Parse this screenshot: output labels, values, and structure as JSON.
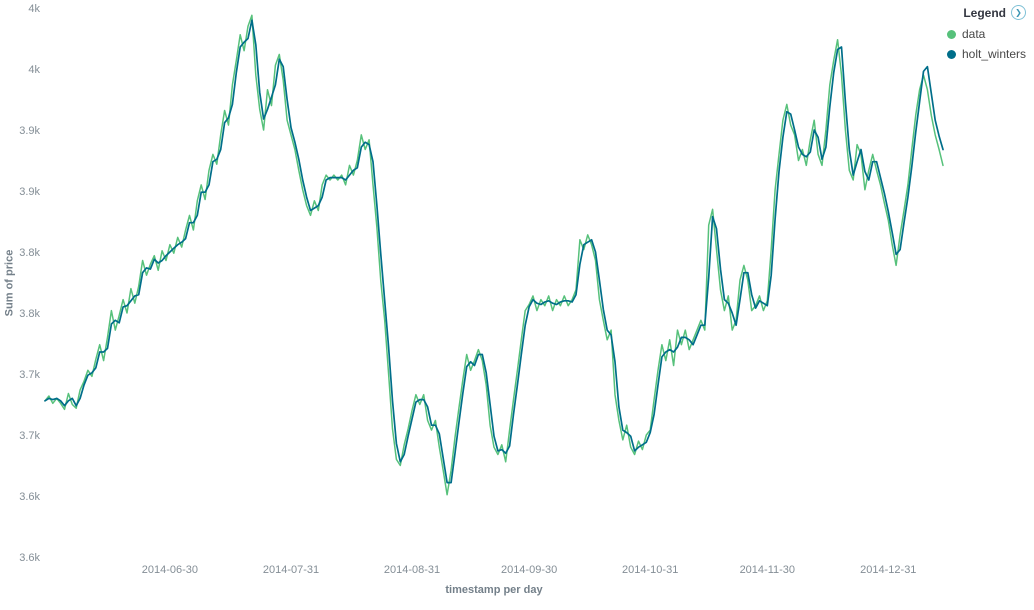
{
  "legend": {
    "title": "Legend",
    "toggle_glyph": "❯",
    "position": "top-right"
  },
  "chart_data": {
    "type": "line",
    "xlabel": "timestamp per day",
    "ylabel": "Sum of price",
    "x_start_date": "2014-05-29",
    "x_interval": "1d",
    "ylim": [
      3550,
      4000
    ],
    "grid": false,
    "legend_position": "top-right",
    "y_ticks": [
      {
        "value": 4000,
        "label": "4k"
      },
      {
        "value": 3950,
        "label": "4k"
      },
      {
        "value": 3900,
        "label": "3.9k"
      },
      {
        "value": 3850,
        "label": "3.9k"
      },
      {
        "value": 3800,
        "label": "3.8k"
      },
      {
        "value": 3750,
        "label": "3.8k"
      },
      {
        "value": 3700,
        "label": "3.7k"
      },
      {
        "value": 3650,
        "label": "3.7k"
      },
      {
        "value": 3600,
        "label": "3.6k"
      },
      {
        "value": 3550,
        "label": "3.6k"
      }
    ],
    "x_ticks": [
      {
        "day_index": 32,
        "label": "2014-06-30"
      },
      {
        "day_index": 63,
        "label": "2014-07-31"
      },
      {
        "day_index": 94,
        "label": "2014-08-31"
      },
      {
        "day_index": 124,
        "label": "2014-09-30"
      },
      {
        "day_index": 155,
        "label": "2014-10-31"
      },
      {
        "day_index": 185,
        "label": "2014-11-30"
      },
      {
        "day_index": 216,
        "label": "2014-12-31"
      }
    ],
    "series": [
      {
        "name": "data",
        "color": "#57c17b",
        "values": [
          3678,
          3682,
          3676,
          3680,
          3676,
          3671,
          3684,
          3675,
          3672,
          3687,
          3694,
          3703,
          3698,
          3712,
          3724,
          3711,
          3730,
          3752,
          3736,
          3748,
          3761,
          3750,
          3770,
          3758,
          3772,
          3793,
          3781,
          3790,
          3797,
          3785,
          3801,
          3793,
          3806,
          3799,
          3812,
          3804,
          3818,
          3830,
          3818,
          3842,
          3855,
          3843,
          3867,
          3880,
          3872,
          3896,
          3916,
          3904,
          3937,
          3957,
          3978,
          3965,
          3985,
          3994,
          3945,
          3917,
          3900,
          3933,
          3920,
          3953,
          3962,
          3941,
          3908,
          3896,
          3884,
          3867,
          3851,
          3838,
          3830,
          3842,
          3834,
          3855,
          3863,
          3859,
          3863,
          3859,
          3863,
          3855,
          3871,
          3863,
          3875,
          3896,
          3884,
          3892,
          3855,
          3820,
          3776,
          3744,
          3700,
          3655,
          3630,
          3625,
          3642,
          3655,
          3670,
          3683,
          3675,
          3683,
          3662,
          3654,
          3662,
          3640,
          3621,
          3601,
          3621,
          3648,
          3672,
          3695,
          3716,
          3703,
          3711,
          3720,
          3711,
          3691,
          3658,
          3640,
          3634,
          3642,
          3628,
          3654,
          3679,
          3703,
          3728,
          3752,
          3757,
          3764,
          3752,
          3761,
          3756,
          3764,
          3752,
          3761,
          3756,
          3764,
          3756,
          3761,
          3769,
          3810,
          3802,
          3814,
          3806,
          3793,
          3761,
          3744,
          3728,
          3736,
          3683,
          3662,
          3646,
          3658,
          3640,
          3634,
          3645,
          3638,
          3650,
          3654,
          3679,
          3703,
          3724,
          3711,
          3728,
          3707,
          3736,
          3724,
          3736,
          3720,
          3728,
          3736,
          3744,
          3736,
          3822,
          3835,
          3802,
          3769,
          3752,
          3764,
          3736,
          3744,
          3777,
          3789,
          3777,
          3752,
          3756,
          3764,
          3752,
          3760,
          3802,
          3851,
          3880,
          3908,
          3921,
          3904,
          3896,
          3875,
          3884,
          3871,
          3892,
          3908,
          3880,
          3871,
          3900,
          3937,
          3957,
          3974,
          3945,
          3900,
          3867,
          3859,
          3888,
          3880,
          3851,
          3867,
          3880,
          3867,
          3855,
          3840,
          3826,
          3806,
          3789,
          3814,
          3834,
          3855,
          3884,
          3912,
          3933,
          3945,
          3933,
          3912,
          3896,
          3884,
          3871
        ]
      },
      {
        "name": "holt_winters",
        "color": "#006e8a",
        "values": [
          3678,
          3680,
          3679,
          3680,
          3678,
          3674,
          3678,
          3680,
          3674,
          3680,
          3691,
          3699,
          3701,
          3705,
          3718,
          3718,
          3721,
          3741,
          3744,
          3742,
          3755,
          3756,
          3760,
          3764,
          3765,
          3783,
          3787,
          3786,
          3794,
          3791,
          3793,
          3797,
          3800,
          3803,
          3806,
          3808,
          3811,
          3824,
          3824,
          3830,
          3849,
          3849,
          3855,
          3874,
          3876,
          3884,
          3906,
          3910,
          3921,
          3947,
          3968,
          3972,
          3975,
          3990,
          3970,
          3931,
          3909,
          3917,
          3927,
          3937,
          3958,
          3952,
          3925,
          3902,
          3890,
          3876,
          3859,
          3845,
          3834,
          3836,
          3838,
          3845,
          3859,
          3861,
          3861,
          3861,
          3861,
          3859,
          3863,
          3867,
          3869,
          3886,
          3890,
          3888,
          3874,
          3838,
          3798,
          3760,
          3722,
          3678,
          3643,
          3628,
          3634,
          3649,
          3663,
          3677,
          3679,
          3679,
          3673,
          3658,
          3658,
          3651,
          3631,
          3611,
          3611,
          3635,
          3660,
          3684,
          3706,
          3710,
          3707,
          3716,
          3716,
          3701,
          3675,
          3649,
          3637,
          3638,
          3635,
          3641,
          3667,
          3691,
          3716,
          3740,
          3755,
          3761,
          3758,
          3757,
          3759,
          3760,
          3758,
          3757,
          3759,
          3760,
          3760,
          3759,
          3765,
          3790,
          3806,
          3808,
          3810,
          3800,
          3777,
          3753,
          3736,
          3732,
          3710,
          3673,
          3654,
          3652,
          3649,
          3637,
          3640,
          3642,
          3644,
          3652,
          3667,
          3691,
          3714,
          3718,
          3720,
          3718,
          3722,
          3730,
          3730,
          3728,
          3724,
          3732,
          3740,
          3740,
          3779,
          3829,
          3819,
          3786,
          3761,
          3758,
          3750,
          3740,
          3761,
          3783,
          3783,
          3765,
          3754,
          3760,
          3758,
          3756,
          3781,
          3827,
          3866,
          3894,
          3915,
          3913,
          3900,
          3886,
          3880,
          3878,
          3882,
          3900,
          3894,
          3876,
          3886,
          3919,
          3947,
          3966,
          3968,
          3923,
          3884,
          3863,
          3874,
          3884,
          3866,
          3859,
          3874,
          3874,
          3861,
          3848,
          3833,
          3816,
          3798,
          3802,
          3824,
          3845,
          3870,
          3898,
          3923,
          3948,
          3952,
          3930,
          3908,
          3895,
          3884
        ]
      }
    ]
  }
}
